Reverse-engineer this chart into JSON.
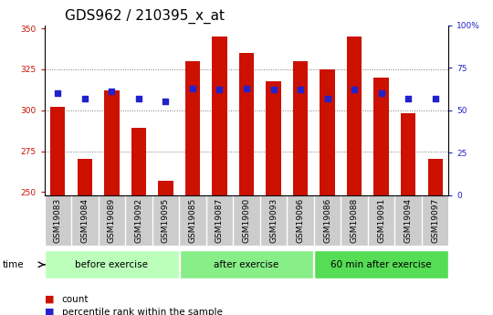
{
  "title": "GDS962 / 210395_x_at",
  "samples": [
    "GSM19083",
    "GSM19084",
    "GSM19089",
    "GSM19092",
    "GSM19095",
    "GSM19085",
    "GSM19087",
    "GSM19090",
    "GSM19093",
    "GSM19096",
    "GSM19086",
    "GSM19088",
    "GSM19091",
    "GSM19094",
    "GSM19097"
  ],
  "counts": [
    302,
    270,
    312,
    289,
    257,
    330,
    345,
    335,
    318,
    330,
    325,
    345,
    320,
    298,
    270
  ],
  "percentile_ranks": [
    60,
    57,
    61,
    57,
    55,
    63,
    62,
    63,
    62,
    62,
    57,
    62,
    60,
    57,
    57
  ],
  "groups": [
    {
      "label": "before exercise",
      "start": 0,
      "end": 5,
      "color": "#bbffbb"
    },
    {
      "label": "after exercise",
      "start": 5,
      "end": 10,
      "color": "#88ee88"
    },
    {
      "label": "60 min after exercise",
      "start": 10,
      "end": 15,
      "color": "#55dd55"
    }
  ],
  "ylim_left": [
    248,
    352
  ],
  "yticks_left": [
    250,
    275,
    300,
    325,
    350
  ],
  "ylim_right": [
    0,
    100
  ],
  "yticks_right": [
    0,
    25,
    50,
    75,
    100
  ],
  "bar_color": "#cc1100",
  "dot_color": "#2222cc",
  "grid_color": "#777777",
  "bg_color": "#ffffff",
  "plot_bg": "#ffffff",
  "xlabel_bg": "#cccccc",
  "title_fontsize": 11,
  "tick_fontsize": 6.5,
  "label_fontsize": 7.5,
  "bar_width": 0.55,
  "dot_size": 18
}
